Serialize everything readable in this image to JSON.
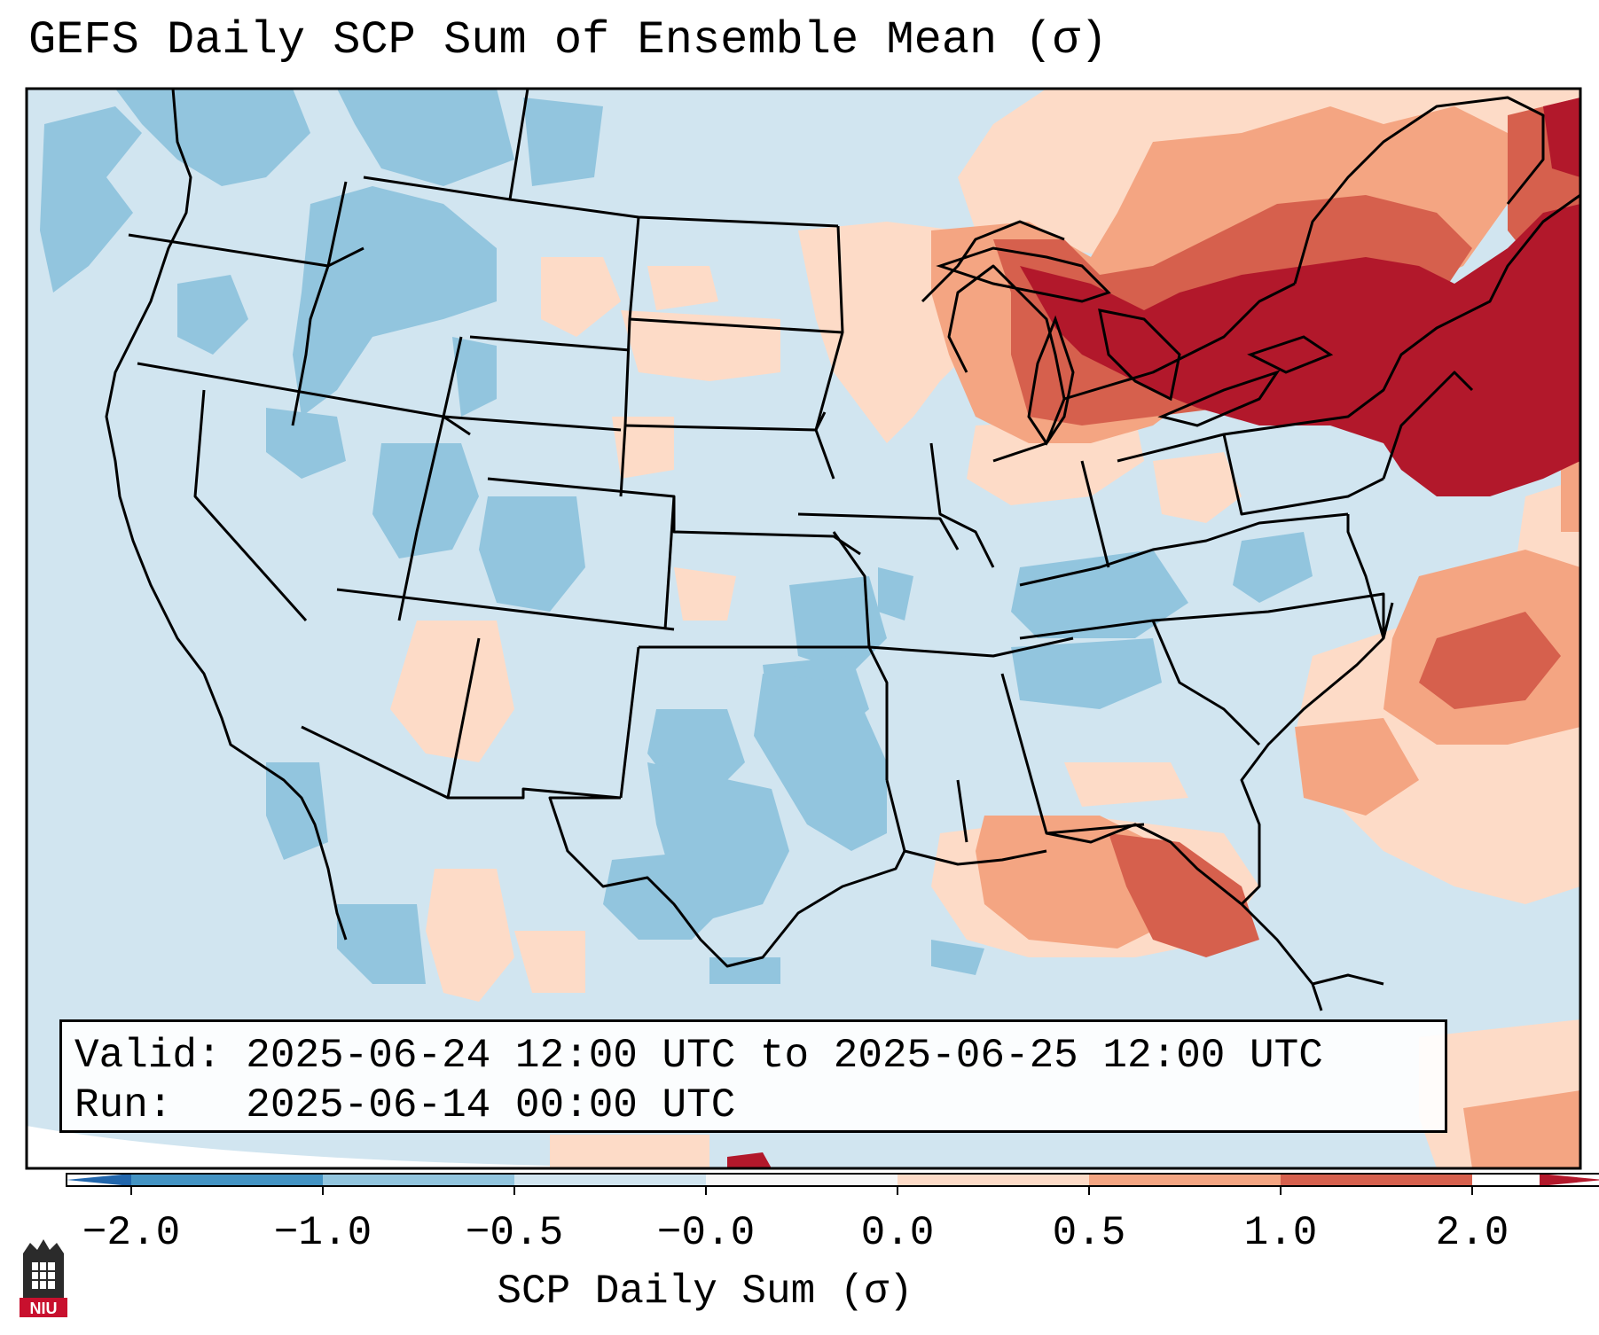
{
  "title": "GEFS Daily SCP Sum of Ensemble Mean (σ)",
  "info": {
    "valid_text": "Valid: 2025-06-24 12:00 UTC to 2025-06-25 12:00 UTC",
    "run_text": "Run:   2025-06-14 00:00 UTC"
  },
  "colorbar": {
    "label": "SCP Daily Sum (σ)",
    "ticks": [
      "−2.0",
      "−1.0",
      "−0.5",
      "−0.0",
      "0.0",
      "0.5",
      "1.0",
      "2.0"
    ],
    "under_color": "#2166ac",
    "over_color": "#b2182b",
    "bins": [
      {
        "range": "-2.0 to -1.0",
        "color": "#4393c3"
      },
      {
        "range": "-1.0 to -0.5",
        "color": "#92c5de"
      },
      {
        "range": "-0.5 to -0.0",
        "color": "#d1e5f0"
      },
      {
        "range": "-0.0 to 0.0",
        "color": "#f7f7f7"
      },
      {
        "range": "0.0 to 0.5",
        "color": "#fddbc7"
      },
      {
        "range": "0.5 to 1.0",
        "color": "#f4a582"
      },
      {
        "range": "1.0 to 2.0",
        "color": "#d6604d"
      }
    ]
  },
  "map": {
    "region": "Contiguous United States",
    "background_color": "#d1e5f0",
    "outside_projection_color": "#ffffff"
  },
  "logo": {
    "text": "NIU",
    "color": "#c8102e"
  }
}
